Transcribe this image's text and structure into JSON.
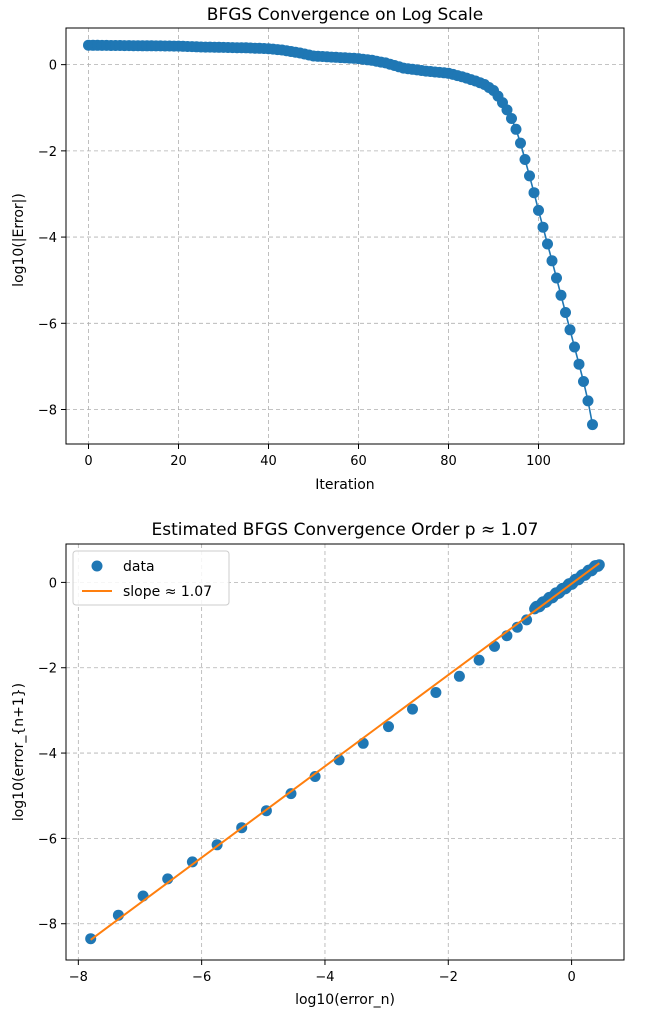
{
  "chart_data": [
    {
      "type": "line",
      "title": "BFGS Convergence on Log Scale",
      "xlabel": "Iteration",
      "ylabel": "log10(|Error|)",
      "xlim": [
        -5,
        119
      ],
      "ylim": [
        -8.8,
        0.85
      ],
      "xticks": [
        0,
        20,
        40,
        60,
        80,
        100
      ],
      "yticks": [
        0,
        -2,
        -4,
        -6,
        -8
      ],
      "grid": true,
      "color": "#1f77b4",
      "markers": true,
      "anchors": [
        [
          0,
          0.45
        ],
        [
          20,
          0.43
        ],
        [
          25,
          0.41
        ],
        [
          35,
          0.39
        ],
        [
          40,
          0.37
        ],
        [
          43,
          0.34
        ],
        [
          47,
          0.27
        ],
        [
          50,
          0.2
        ],
        [
          55,
          0.17
        ],
        [
          60,
          0.14
        ],
        [
          63,
          0.1
        ],
        [
          66,
          0.04
        ],
        [
          70,
          -0.08
        ],
        [
          75,
          -0.15
        ],
        [
          80,
          -0.2
        ],
        [
          83,
          -0.28
        ],
        [
          86,
          -0.38
        ],
        [
          88,
          -0.46
        ],
        [
          90,
          -0.6
        ],
        [
          91,
          -0.73
        ],
        [
          92,
          -0.88
        ],
        [
          93,
          -1.05
        ],
        [
          94,
          -1.25
        ],
        [
          95,
          -1.5
        ],
        [
          96,
          -1.82
        ],
        [
          97,
          -2.2
        ],
        [
          98,
          -2.58
        ],
        [
          99,
          -2.97
        ],
        [
          100,
          -3.38
        ],
        [
          101,
          -3.77
        ],
        [
          102,
          -4.16
        ],
        [
          103,
          -4.55
        ],
        [
          104,
          -4.95
        ],
        [
          105,
          -5.35
        ],
        [
          106,
          -5.75
        ],
        [
          107,
          -6.15
        ],
        [
          108,
          -6.55
        ],
        [
          109,
          -6.95
        ],
        [
          110,
          -7.35
        ],
        [
          111,
          -7.8
        ],
        [
          112,
          -8.35
        ]
      ]
    },
    {
      "type": "scatter",
      "title": "Estimated BFGS Convergence Order p ≈ 1.07",
      "xlabel": "log10(error_n)",
      "ylabel": "log10(error_{n+1})",
      "xlim": [
        -8.2,
        0.85
      ],
      "ylim": [
        -8.85,
        0.9
      ],
      "xticks": [
        -8,
        -6,
        -4,
        -2,
        0
      ],
      "yticks": [
        0,
        -2,
        -4,
        -6,
        -8
      ],
      "grid": true,
      "legend": "upper-left",
      "series": [
        {
          "name": "data",
          "color": "#1f77b4"
        },
        {
          "name": "slope ≈ 1.07",
          "color": "#ff7f0e",
          "slope": 1.07,
          "intercept": -0.03,
          "x_range": [
            -7.8,
            0.45
          ]
        }
      ],
      "dense_range": [
        -0.6,
        0.45
      ],
      "points": [
        [
          -7.8,
          -8.35
        ],
        [
          -7.35,
          -7.8
        ],
        [
          -6.95,
          -7.35
        ],
        [
          -6.55,
          -6.95
        ],
        [
          -6.15,
          -6.55
        ],
        [
          -5.75,
          -6.15
        ],
        [
          -5.35,
          -5.75
        ],
        [
          -4.95,
          -5.35
        ],
        [
          -4.55,
          -4.95
        ],
        [
          -4.16,
          -4.55
        ],
        [
          -3.77,
          -4.16
        ],
        [
          -3.38,
          -3.77
        ],
        [
          -2.97,
          -3.38
        ],
        [
          -2.58,
          -2.97
        ],
        [
          -2.2,
          -2.58
        ],
        [
          -1.82,
          -2.2
        ],
        [
          -1.5,
          -1.82
        ],
        [
          -1.25,
          -1.5
        ],
        [
          -1.05,
          -1.25
        ],
        [
          -0.88,
          -1.05
        ],
        [
          -0.73,
          -0.88
        ]
      ]
    }
  ]
}
